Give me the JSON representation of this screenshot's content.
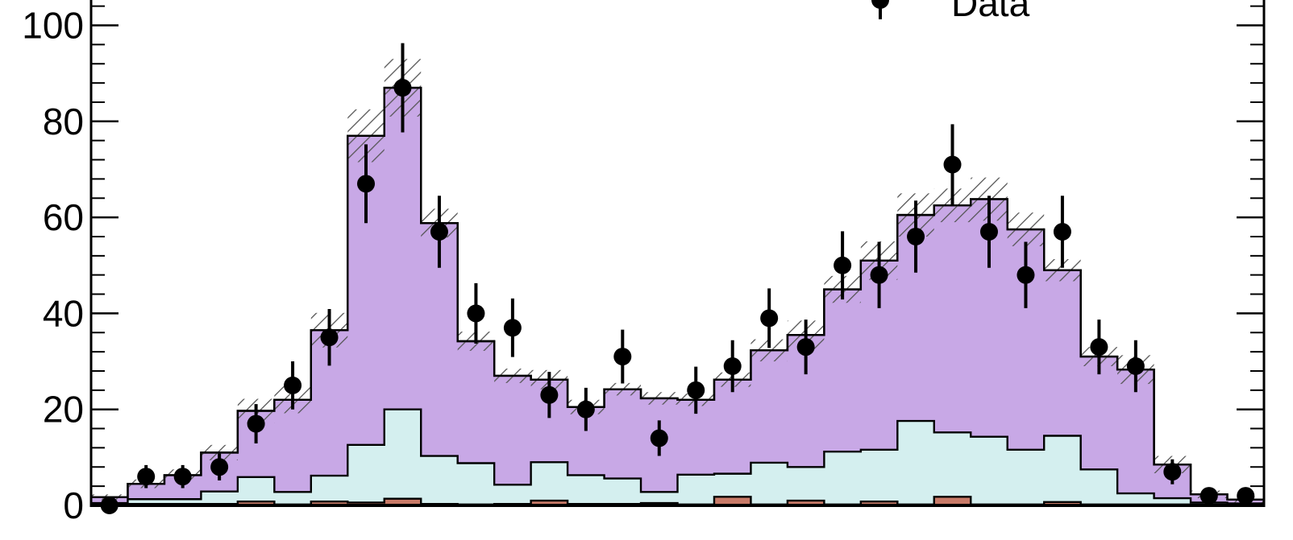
{
  "chart_data": {
    "type": "bar",
    "legend": {
      "position": "top-right",
      "entries": [
        {
          "label": "Data"
        }
      ]
    },
    "ylim": [
      0,
      104
    ],
    "y_ticks": [
      0,
      20,
      40,
      60,
      80,
      100
    ],
    "y_tick_labels": [
      "0",
      "20",
      "40",
      "60",
      "80",
      "100"
    ],
    "bins": 32,
    "series": [
      {
        "name": "",
        "role": "total",
        "fill": "#c8a8e6",
        "values": [
          1.7,
          4.5,
          6.3,
          11.0,
          19.7,
          22.0,
          36.5,
          77.0,
          87.0,
          58.8,
          34.2,
          27.0,
          26.2,
          20.5,
          24.2,
          22.3,
          22.0,
          26.2,
          32.3,
          35.5,
          45.0,
          51.0,
          60.5,
          62.5,
          63.8,
          57.5,
          49.0,
          31.0,
          28.3,
          8.5,
          2.3,
          1.2
        ]
      },
      {
        "name": "",
        "role": "component",
        "fill": "#d4efef",
        "values": [
          0.5,
          1.3,
          1.3,
          2.9,
          5.9,
          2.8,
          6.2,
          12.6,
          20.0,
          10.3,
          8.8,
          4.3,
          9.0,
          6.3,
          5.6,
          2.8,
          6.4,
          6.6,
          8.9,
          8.0,
          11.2,
          11.6,
          17.6,
          15.2,
          14.3,
          11.6,
          14.5,
          7.5,
          2.5,
          1.5,
          0.6,
          0.4
        ]
      },
      {
        "name": "",
        "role": "component",
        "fill": "#c87a68",
        "values": [
          0.2,
          0.3,
          0.3,
          0.3,
          0.8,
          0.2,
          0.8,
          0.6,
          1.4,
          0.3,
          0.2,
          0.3,
          1.0,
          0.3,
          0.3,
          0.5,
          0.2,
          1.8,
          0.2,
          1.0,
          0.2,
          0.8,
          0.2,
          1.8,
          0.2,
          0.2,
          0.7,
          0.2,
          0.2,
          0.2,
          0.2,
          0.2
        ]
      }
    ],
    "uncertainty_band": {
      "hatched": true,
      "half_width": [
        0.6,
        0.9,
        1.2,
        1.6,
        2.5,
        2.8,
        3.6,
        5.5,
        6.0,
        3.0,
        2.0,
        1.5,
        2.0,
        1.5,
        1.3,
        1.3,
        1.3,
        1.5,
        2.3,
        3.0,
        2.8,
        4.0,
        4.5,
        3.5,
        4.5,
        3.5,
        2.3,
        2.0,
        3.0,
        1.8,
        0.8,
        0.6
      ]
    },
    "data_points": {
      "label": "Data",
      "values": [
        0,
        6,
        6,
        8,
        17,
        25,
        35,
        67,
        87,
        57,
        40,
        37,
        23,
        20,
        31,
        14,
        24,
        29,
        39,
        33,
        50,
        48,
        56,
        71,
        57,
        48,
        57,
        33,
        29,
        7,
        2,
        2
      ],
      "errors": [
        0.6,
        2.4,
        2.4,
        2.8,
        4.1,
        5.0,
        5.9,
        8.2,
        9.3,
        7.5,
        6.3,
        6.1,
        4.8,
        4.5,
        5.6,
        3.7,
        4.9,
        5.4,
        6.2,
        5.7,
        7.1,
        6.9,
        7.5,
        8.4,
        7.5,
        6.9,
        7.5,
        5.7,
        5.4,
        2.6,
        1.4,
        1.4
      ]
    }
  }
}
